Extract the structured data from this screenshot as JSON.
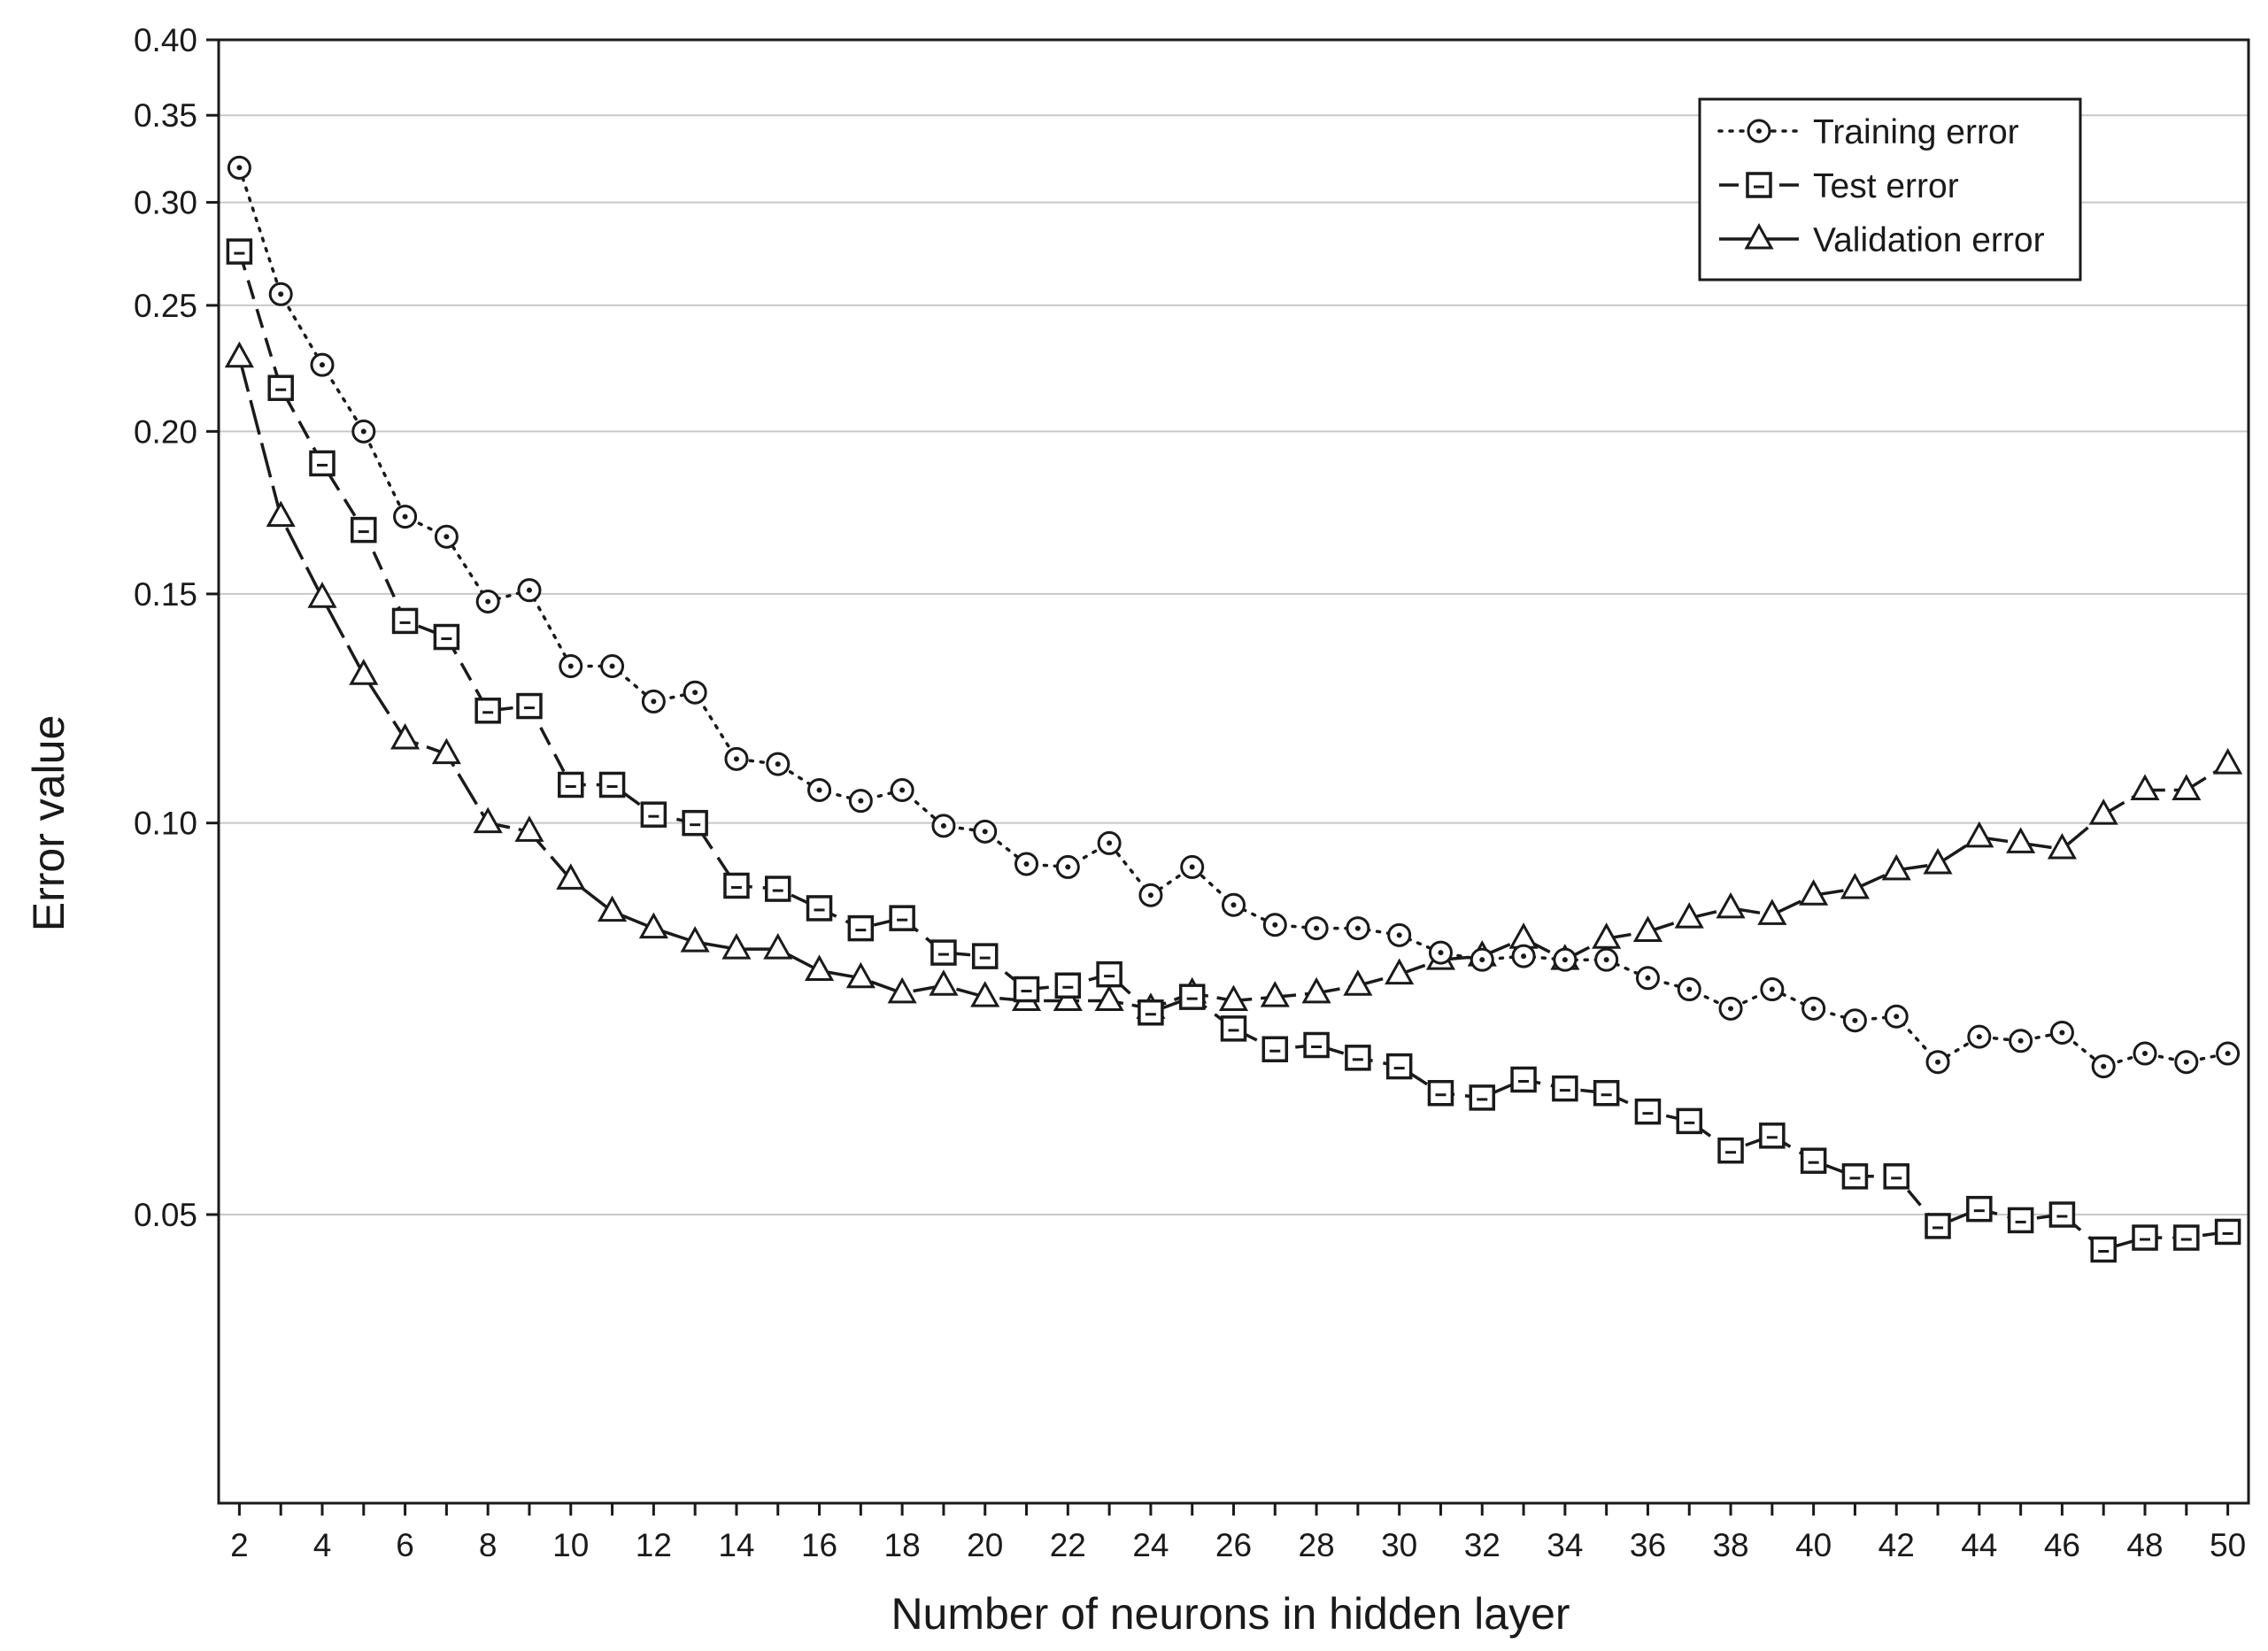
{
  "chart_data": {
    "type": "line",
    "title": "",
    "xlabel": "Number of neurons in hidden layer",
    "ylabel": "Error value",
    "xlim": [
      1.5,
      50.5
    ],
    "ylim": [
      0.03,
      0.4
    ],
    "yscale": "log",
    "grid": "horizontal",
    "legend_position": "top-right",
    "x_ticks": [
      2,
      4,
      6,
      8,
      10,
      12,
      14,
      16,
      18,
      20,
      22,
      24,
      26,
      28,
      30,
      32,
      34,
      36,
      38,
      40,
      42,
      44,
      46,
      48,
      50
    ],
    "x_tick_labels": [
      "2",
      "4",
      "6",
      "8",
      "10",
      "12",
      "14",
      "16",
      "18",
      "20",
      "22",
      "24",
      "26",
      "28",
      "30",
      "32",
      "34",
      "36",
      "38",
      "40",
      "42",
      "44",
      "46",
      "48",
      "50"
    ],
    "y_ticks": [
      0.05,
      0.1,
      0.15,
      0.2,
      0.25,
      0.3,
      0.35,
      0.4
    ],
    "y_tick_labels": [
      "0.05",
      "0.10",
      "0.15",
      "0.20",
      "0.25",
      "0.30",
      "0.35",
      "0.40"
    ],
    "x": [
      2,
      3,
      4,
      5,
      6,
      7,
      8,
      9,
      10,
      11,
      12,
      13,
      14,
      15,
      16,
      17,
      18,
      19,
      20,
      21,
      22,
      23,
      24,
      25,
      26,
      27,
      28,
      29,
      30,
      31,
      32,
      33,
      34,
      35,
      36,
      37,
      38,
      39,
      40,
      41,
      42,
      43,
      44,
      45,
      46,
      47,
      48,
      49,
      50
    ],
    "series": [
      {
        "name": "Training error",
        "marker": "circle",
        "line": "dotted",
        "values": [
          0.319,
          0.255,
          0.225,
          0.2,
          0.172,
          0.166,
          0.148,
          0.151,
          0.132,
          0.132,
          0.124,
          0.126,
          0.112,
          0.111,
          0.106,
          0.104,
          0.106,
          0.0995,
          0.0985,
          0.093,
          0.0925,
          0.0965,
          0.088,
          0.0925,
          0.0865,
          0.0835,
          0.083,
          0.083,
          0.082,
          0.0795,
          0.0785,
          0.079,
          0.0785,
          0.0785,
          0.076,
          0.0745,
          0.072,
          0.0745,
          0.072,
          0.0705,
          0.071,
          0.0655,
          0.0685,
          0.068,
          0.069,
          0.065,
          0.0665,
          0.0655,
          0.0665
        ]
      },
      {
        "name": "Test error",
        "marker": "square",
        "line": "dashed",
        "values": [
          0.275,
          0.216,
          0.189,
          0.168,
          0.143,
          0.139,
          0.122,
          0.123,
          0.107,
          0.107,
          0.1015,
          0.1,
          0.0895,
          0.089,
          0.086,
          0.083,
          0.0845,
          0.0795,
          0.079,
          0.0745,
          0.075,
          0.0765,
          0.0715,
          0.0735,
          0.0695,
          0.067,
          0.0675,
          0.066,
          0.065,
          0.062,
          0.0615,
          0.0635,
          0.0625,
          0.062,
          0.06,
          0.059,
          0.056,
          0.0575,
          0.055,
          0.0535,
          0.0535,
          0.049,
          0.0505,
          0.0495,
          0.05,
          0.047,
          0.048,
          0.048,
          0.0485
        ]
      },
      {
        "name": "Validation error",
        "marker": "triangle",
        "line": "long-dash",
        "values": [
          0.228,
          0.172,
          0.149,
          0.13,
          0.116,
          0.113,
          0.1,
          0.0985,
          0.0905,
          0.0855,
          0.083,
          0.081,
          0.08,
          0.08,
          0.077,
          0.076,
          0.074,
          0.075,
          0.0735,
          0.073,
          0.073,
          0.073,
          0.072,
          0.074,
          0.073,
          0.0735,
          0.074,
          0.075,
          0.0765,
          0.0785,
          0.079,
          0.0815,
          0.0785,
          0.0815,
          0.0825,
          0.0845,
          0.086,
          0.085,
          0.088,
          0.089,
          0.092,
          0.093,
          0.0975,
          0.0965,
          0.0955,
          0.1015,
          0.106,
          0.106,
          0.111
        ]
      }
    ]
  }
}
